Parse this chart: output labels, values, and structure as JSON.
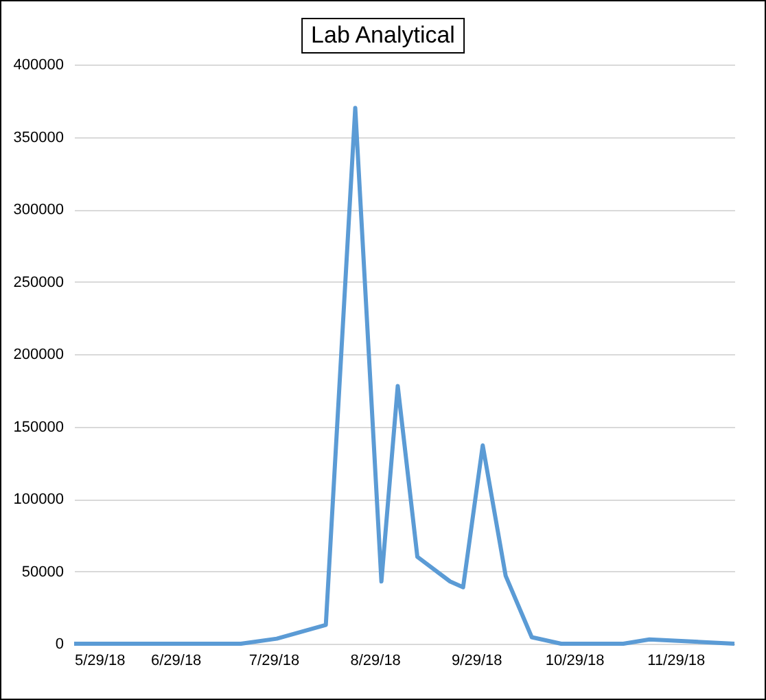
{
  "chart_data": {
    "type": "line",
    "title": "Lab Analytical",
    "x": [
      "2018-05-29",
      "2018-07-19",
      "2018-07-30",
      "2018-08-14",
      "2018-08-23",
      "2018-08-31",
      "2018-09-05",
      "2018-09-11",
      "2018-09-21",
      "2018-09-25",
      "2018-10-01",
      "2018-10-08",
      "2018-10-16",
      "2018-10-25",
      "2018-11-13",
      "2018-11-21",
      "2018-12-17"
    ],
    "series": [
      {
        "color": "#5b9bd5",
        "values": [
          0,
          0,
          3500,
          13000,
          370000,
          43000,
          178000,
          60000,
          43000,
          39000,
          137000,
          47000,
          4500,
          0,
          0,
          3000,
          0
        ]
      }
    ],
    "xlim": [
      "2018-05-29",
      "2018-12-17"
    ],
    "xticks": [
      {
        "value": "2018-05-29",
        "label": "5/29/18"
      },
      {
        "value": "2018-06-29",
        "label": "6/29/18"
      },
      {
        "value": "2018-07-29",
        "label": "7/29/18"
      },
      {
        "value": "2018-08-29",
        "label": "8/29/18"
      },
      {
        "value": "2018-09-29",
        "label": "9/29/18"
      },
      {
        "value": "2018-10-29",
        "label": "10/29/18"
      },
      {
        "value": "2018-11-29",
        "label": "11/29/18"
      }
    ],
    "ylim": [
      0,
      400000
    ],
    "yticks": [
      0,
      50000,
      100000,
      150000,
      200000,
      250000,
      300000,
      350000,
      400000
    ],
    "grid": "y",
    "marker": "none",
    "line_style": "solid"
  }
}
